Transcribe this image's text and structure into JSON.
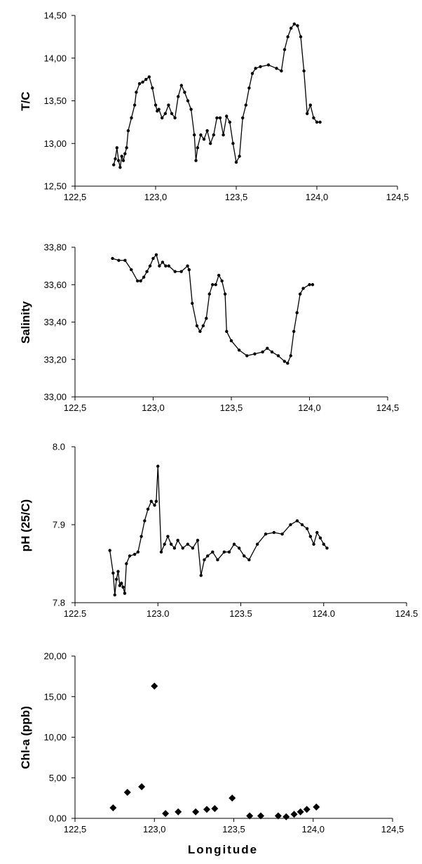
{
  "chart_data": [
    {
      "type": "line",
      "ylabel": "T/C",
      "xlabel": "",
      "xlim": [
        122.5,
        124.5
      ],
      "ylim": [
        12.5,
        14.5
      ],
      "xticks": [
        122.5,
        123.0,
        123.5,
        124.0,
        124.5
      ],
      "xtick_labels": [
        "122,5",
        "123,0",
        "123,5",
        "124,0",
        "124,5"
      ],
      "yticks": [
        12.5,
        13.0,
        13.5,
        14.0,
        14.5
      ],
      "ytick_labels": [
        "12,50",
        "13,00",
        "13,50",
        "14,00",
        "14,50"
      ],
      "grid": false,
      "legend": "none",
      "marker": "dot",
      "series": [
        {
          "x": [
            122.74,
            122.75,
            122.76,
            122.77,
            122.78,
            122.79,
            122.8,
            122.81,
            122.82,
            122.83,
            122.85,
            122.87,
            122.88,
            122.9,
            122.92,
            122.94,
            122.96,
            122.98,
            123.0,
            123.01,
            123.02,
            123.04,
            123.06,
            123.08,
            123.1,
            123.12,
            123.14,
            123.16,
            123.18,
            123.2,
            123.22,
            123.24,
            123.25,
            123.26,
            123.28,
            123.3,
            123.32,
            123.34,
            123.36,
            123.38,
            123.4,
            123.42,
            123.44,
            123.46,
            123.48,
            123.5,
            123.52,
            123.54,
            123.56,
            123.58,
            123.6,
            123.62,
            123.65,
            123.7,
            123.75,
            123.78,
            123.8,
            123.82,
            123.84,
            123.86,
            123.88,
            123.9,
            123.92,
            123.94,
            123.96,
            123.98,
            124.0,
            124.02
          ],
          "y": [
            12.75,
            12.82,
            12.95,
            12.8,
            12.72,
            12.85,
            12.8,
            12.88,
            12.95,
            13.15,
            13.3,
            13.45,
            13.6,
            13.7,
            13.72,
            13.75,
            13.78,
            13.65,
            13.45,
            13.38,
            13.4,
            13.3,
            13.35,
            13.45,
            13.35,
            13.3,
            13.55,
            13.68,
            13.6,
            13.5,
            13.4,
            13.1,
            12.8,
            12.95,
            13.1,
            13.05,
            13.15,
            13.0,
            13.1,
            13.3,
            13.3,
            13.1,
            13.32,
            13.25,
            13.0,
            12.78,
            12.85,
            13.3,
            13.45,
            13.65,
            13.82,
            13.88,
            13.9,
            13.92,
            13.88,
            13.85,
            14.1,
            14.25,
            14.35,
            14.4,
            14.38,
            14.25,
            13.85,
            13.35,
            13.45,
            13.3,
            13.25,
            13.25
          ]
        }
      ]
    },
    {
      "type": "line",
      "ylabel": "Salinity",
      "xlabel": "",
      "xlim": [
        122.5,
        124.5
      ],
      "ylim": [
        33.0,
        33.8
      ],
      "xticks": [
        122.5,
        123.0,
        123.5,
        124.0,
        124.5
      ],
      "xtick_labels": [
        "122,5",
        "123,0",
        "123,5",
        "124,0",
        "124,5"
      ],
      "yticks": [
        33.0,
        33.2,
        33.4,
        33.6,
        33.8
      ],
      "ytick_labels": [
        "33,00",
        "33,20",
        "33,40",
        "33,60",
        "33,80"
      ],
      "grid": false,
      "legend": "none",
      "marker": "dot",
      "series": [
        {
          "x": [
            122.74,
            122.78,
            122.82,
            122.86,
            122.9,
            122.92,
            122.94,
            122.96,
            122.98,
            123.0,
            123.02,
            123.04,
            123.06,
            123.08,
            123.1,
            123.14,
            123.18,
            123.22,
            123.23,
            123.25,
            123.28,
            123.3,
            123.32,
            123.34,
            123.36,
            123.38,
            123.4,
            123.42,
            123.44,
            123.46,
            123.47,
            123.5,
            123.55,
            123.6,
            123.65,
            123.7,
            123.73,
            123.76,
            123.8,
            123.84,
            123.86,
            123.88,
            123.9,
            123.92,
            123.94,
            123.96,
            124.0,
            124.02
          ],
          "y": [
            33.74,
            33.73,
            33.73,
            33.68,
            33.62,
            33.62,
            33.64,
            33.67,
            33.7,
            33.74,
            33.76,
            33.7,
            33.72,
            33.7,
            33.7,
            33.67,
            33.67,
            33.7,
            33.68,
            33.5,
            33.38,
            33.35,
            33.38,
            33.42,
            33.55,
            33.6,
            33.6,
            33.65,
            33.62,
            33.55,
            33.35,
            33.3,
            33.25,
            33.22,
            33.23,
            33.24,
            33.26,
            33.24,
            33.22,
            33.19,
            33.18,
            33.22,
            33.35,
            33.45,
            33.55,
            33.58,
            33.6,
            33.6
          ]
        }
      ]
    },
    {
      "type": "line",
      "ylabel": "pH (25/C)",
      "xlabel": "",
      "xlim": [
        122.5,
        124.5
      ],
      "ylim": [
        7.8,
        8.0
      ],
      "xticks": [
        122.5,
        123.0,
        123.5,
        124.0,
        124.5
      ],
      "xtick_labels": [
        "122.5",
        "123.0",
        "123.5",
        "124.0",
        "124.5"
      ],
      "yticks": [
        7.8,
        7.9,
        8.0
      ],
      "ytick_labels": [
        "7.8",
        "7.9",
        "8.0"
      ],
      "grid": false,
      "legend": "none",
      "marker": "dot",
      "series": [
        {
          "x": [
            122.71,
            122.73,
            122.74,
            122.75,
            122.76,
            122.77,
            122.78,
            122.79,
            122.8,
            122.81,
            122.83,
            122.86,
            122.88,
            122.9,
            122.92,
            122.94,
            122.96,
            122.98,
            122.99,
            123.0,
            123.02,
            123.04,
            123.06,
            123.08,
            123.1,
            123.12,
            123.15,
            123.18,
            123.21,
            123.24,
            123.26,
            123.28,
            123.3,
            123.33,
            123.36,
            123.4,
            123.43,
            123.46,
            123.49,
            123.52,
            123.55,
            123.6,
            123.65,
            123.7,
            123.75,
            123.8,
            123.84,
            123.87,
            123.9,
            123.92,
            123.94,
            123.96,
            123.98,
            124.0,
            124.02
          ],
          "y": [
            7.867,
            7.838,
            7.81,
            7.83,
            7.84,
            7.822,
            7.825,
            7.82,
            7.812,
            7.85,
            7.86,
            7.862,
            7.865,
            7.885,
            7.905,
            7.92,
            7.93,
            7.925,
            7.93,
            7.975,
            7.865,
            7.875,
            7.885,
            7.875,
            7.87,
            7.88,
            7.87,
            7.875,
            7.87,
            7.88,
            7.835,
            7.855,
            7.86,
            7.865,
            7.855,
            7.865,
            7.865,
            7.875,
            7.87,
            7.86,
            7.855,
            7.875,
            7.888,
            7.89,
            7.888,
            7.9,
            7.905,
            7.9,
            7.895,
            7.885,
            7.875,
            7.89,
            7.883,
            7.875,
            7.87
          ]
        }
      ]
    },
    {
      "type": "scatter",
      "ylabel": "Chl-a (ppb)",
      "xlabel": "Longitude",
      "xlim": [
        122.5,
        124.5
      ],
      "ylim": [
        0,
        20
      ],
      "xticks": [
        122.5,
        123.0,
        123.5,
        124.0,
        124.5
      ],
      "xtick_labels": [
        "122,5",
        "123,0",
        "123,5",
        "124,0",
        "124,5"
      ],
      "yticks": [
        0,
        5,
        10,
        15,
        20
      ],
      "ytick_labels": [
        "0,00",
        "5,00",
        "10,00",
        "15,00",
        "20,00"
      ],
      "grid": false,
      "legend": "none",
      "marker": "diamond",
      "series": [
        {
          "x": [
            122.74,
            122.83,
            122.92,
            123.0,
            123.07,
            123.15,
            123.26,
            123.33,
            123.38,
            123.49,
            123.6,
            123.67,
            123.78,
            123.83,
            123.88,
            123.92,
            123.96,
            124.02
          ],
          "y": [
            1.3,
            3.2,
            3.9,
            16.3,
            0.6,
            0.8,
            0.8,
            1.1,
            1.2,
            2.5,
            0.3,
            0.3,
            0.3,
            0.2,
            0.5,
            0.8,
            1.1,
            1.4
          ]
        }
      ]
    }
  ]
}
